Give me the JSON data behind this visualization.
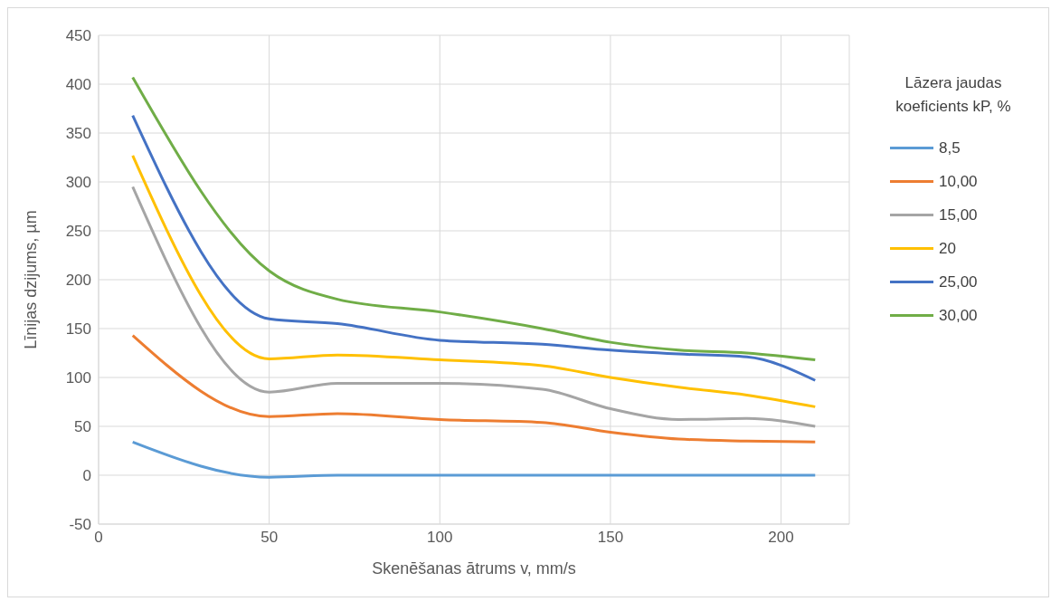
{
  "chart_data": {
    "type": "line",
    "xlabel": "Skenēšanas ātrums v, mm/s",
    "ylabel": "Līnijas dzijums, µm",
    "legend_title": "Lāzera jaudas koeficients kP, %",
    "x": [
      10,
      50,
      70,
      100,
      130,
      150,
      170,
      190,
      210
    ],
    "series": [
      {
        "name": "8,5",
        "color": "#5b9bd5",
        "values": [
          34,
          -2,
          0,
          0,
          0,
          0,
          0,
          0,
          0
        ]
      },
      {
        "name": "10,00",
        "color": "#ed7d31",
        "values": [
          143,
          60,
          63,
          57,
          54,
          44,
          37,
          35,
          34
        ]
      },
      {
        "name": "15,00",
        "color": "#a5a5a5",
        "values": [
          295,
          85,
          94,
          94,
          88,
          68,
          57,
          58,
          50
        ]
      },
      {
        "name": "20",
        "color": "#ffc000",
        "values": [
          327,
          119,
          123,
          118,
          112,
          100,
          90,
          82,
          70
        ]
      },
      {
        "name": "25,00",
        "color": "#4472c4",
        "values": [
          368,
          160,
          155,
          138,
          134,
          128,
          124,
          121,
          97
        ]
      },
      {
        "name": "30,00",
        "color": "#70ad47",
        "values": [
          407,
          209,
          180,
          167,
          150,
          136,
          128,
          125,
          118
        ]
      }
    ],
    "xlim": [
      0,
      220
    ],
    "xticks": [
      0,
      50,
      100,
      150,
      200
    ],
    "ylim": [
      -50,
      450
    ],
    "yticks": [
      -50,
      0,
      50,
      100,
      150,
      200,
      250,
      300,
      350,
      400,
      450
    ],
    "grid": true,
    "legend": "right",
    "marker": "none",
    "line_style": "solid"
  }
}
